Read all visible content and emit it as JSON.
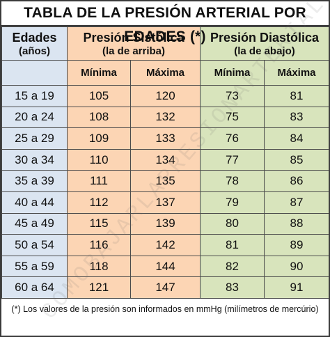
{
  "title": "TABLA DE LA PRESIÓN ARTERIAL POR EDADES (*)",
  "header": {
    "age_label": "Edades",
    "age_unit": "(años)",
    "systolic_label": "Presión Sistólica",
    "systolic_note": "(la de arriba)",
    "diastolic_label": "Presión Diastólica",
    "diastolic_note": "(la de abajo)",
    "min_label": "Mínima",
    "max_label": "Máxima"
  },
  "rows": [
    {
      "age": "15 a 19",
      "sys_min": "105",
      "sys_max": "120",
      "dia_min": "73",
      "dia_max": "81"
    },
    {
      "age": "20 a 24",
      "sys_min": "108",
      "sys_max": "132",
      "dia_min": "75",
      "dia_max": "83"
    },
    {
      "age": "25 a 29",
      "sys_min": "109",
      "sys_max": "133",
      "dia_min": "76",
      "dia_max": "84"
    },
    {
      "age": "30 a 34",
      "sys_min": "110",
      "sys_max": "134",
      "dia_min": "77",
      "dia_max": "85"
    },
    {
      "age": "35 a 39",
      "sys_min": "111",
      "sys_max": "135",
      "dia_min": "78",
      "dia_max": "86"
    },
    {
      "age": "40 a 44",
      "sys_min": "112",
      "sys_max": "137",
      "dia_min": "79",
      "dia_max": "87"
    },
    {
      "age": "45 a 49",
      "sys_min": "115",
      "sys_max": "139",
      "dia_min": "80",
      "dia_max": "88"
    },
    {
      "age": "50 a 54",
      "sys_min": "116",
      "sys_max": "142",
      "dia_min": "81",
      "dia_max": "89"
    },
    {
      "age": "55 a 59",
      "sys_min": "118",
      "sys_max": "144",
      "dia_min": "82",
      "dia_max": "90"
    },
    {
      "age": "60 a 64",
      "sys_min": "121",
      "sys_max": "147",
      "dia_min": "83",
      "dia_max": "91"
    }
  ],
  "footnote": "(*) Los valores de la presión son informados en mmHg (milímetros de mercúrio)",
  "watermark": "COMOBAJARLAPRESIONARTERIAL.COM",
  "colors": {
    "age_column": "#dbe5f1",
    "systolic": "#fcd5b4",
    "diastolic": "#d8e4bc",
    "border": "#3a3a3a"
  }
}
